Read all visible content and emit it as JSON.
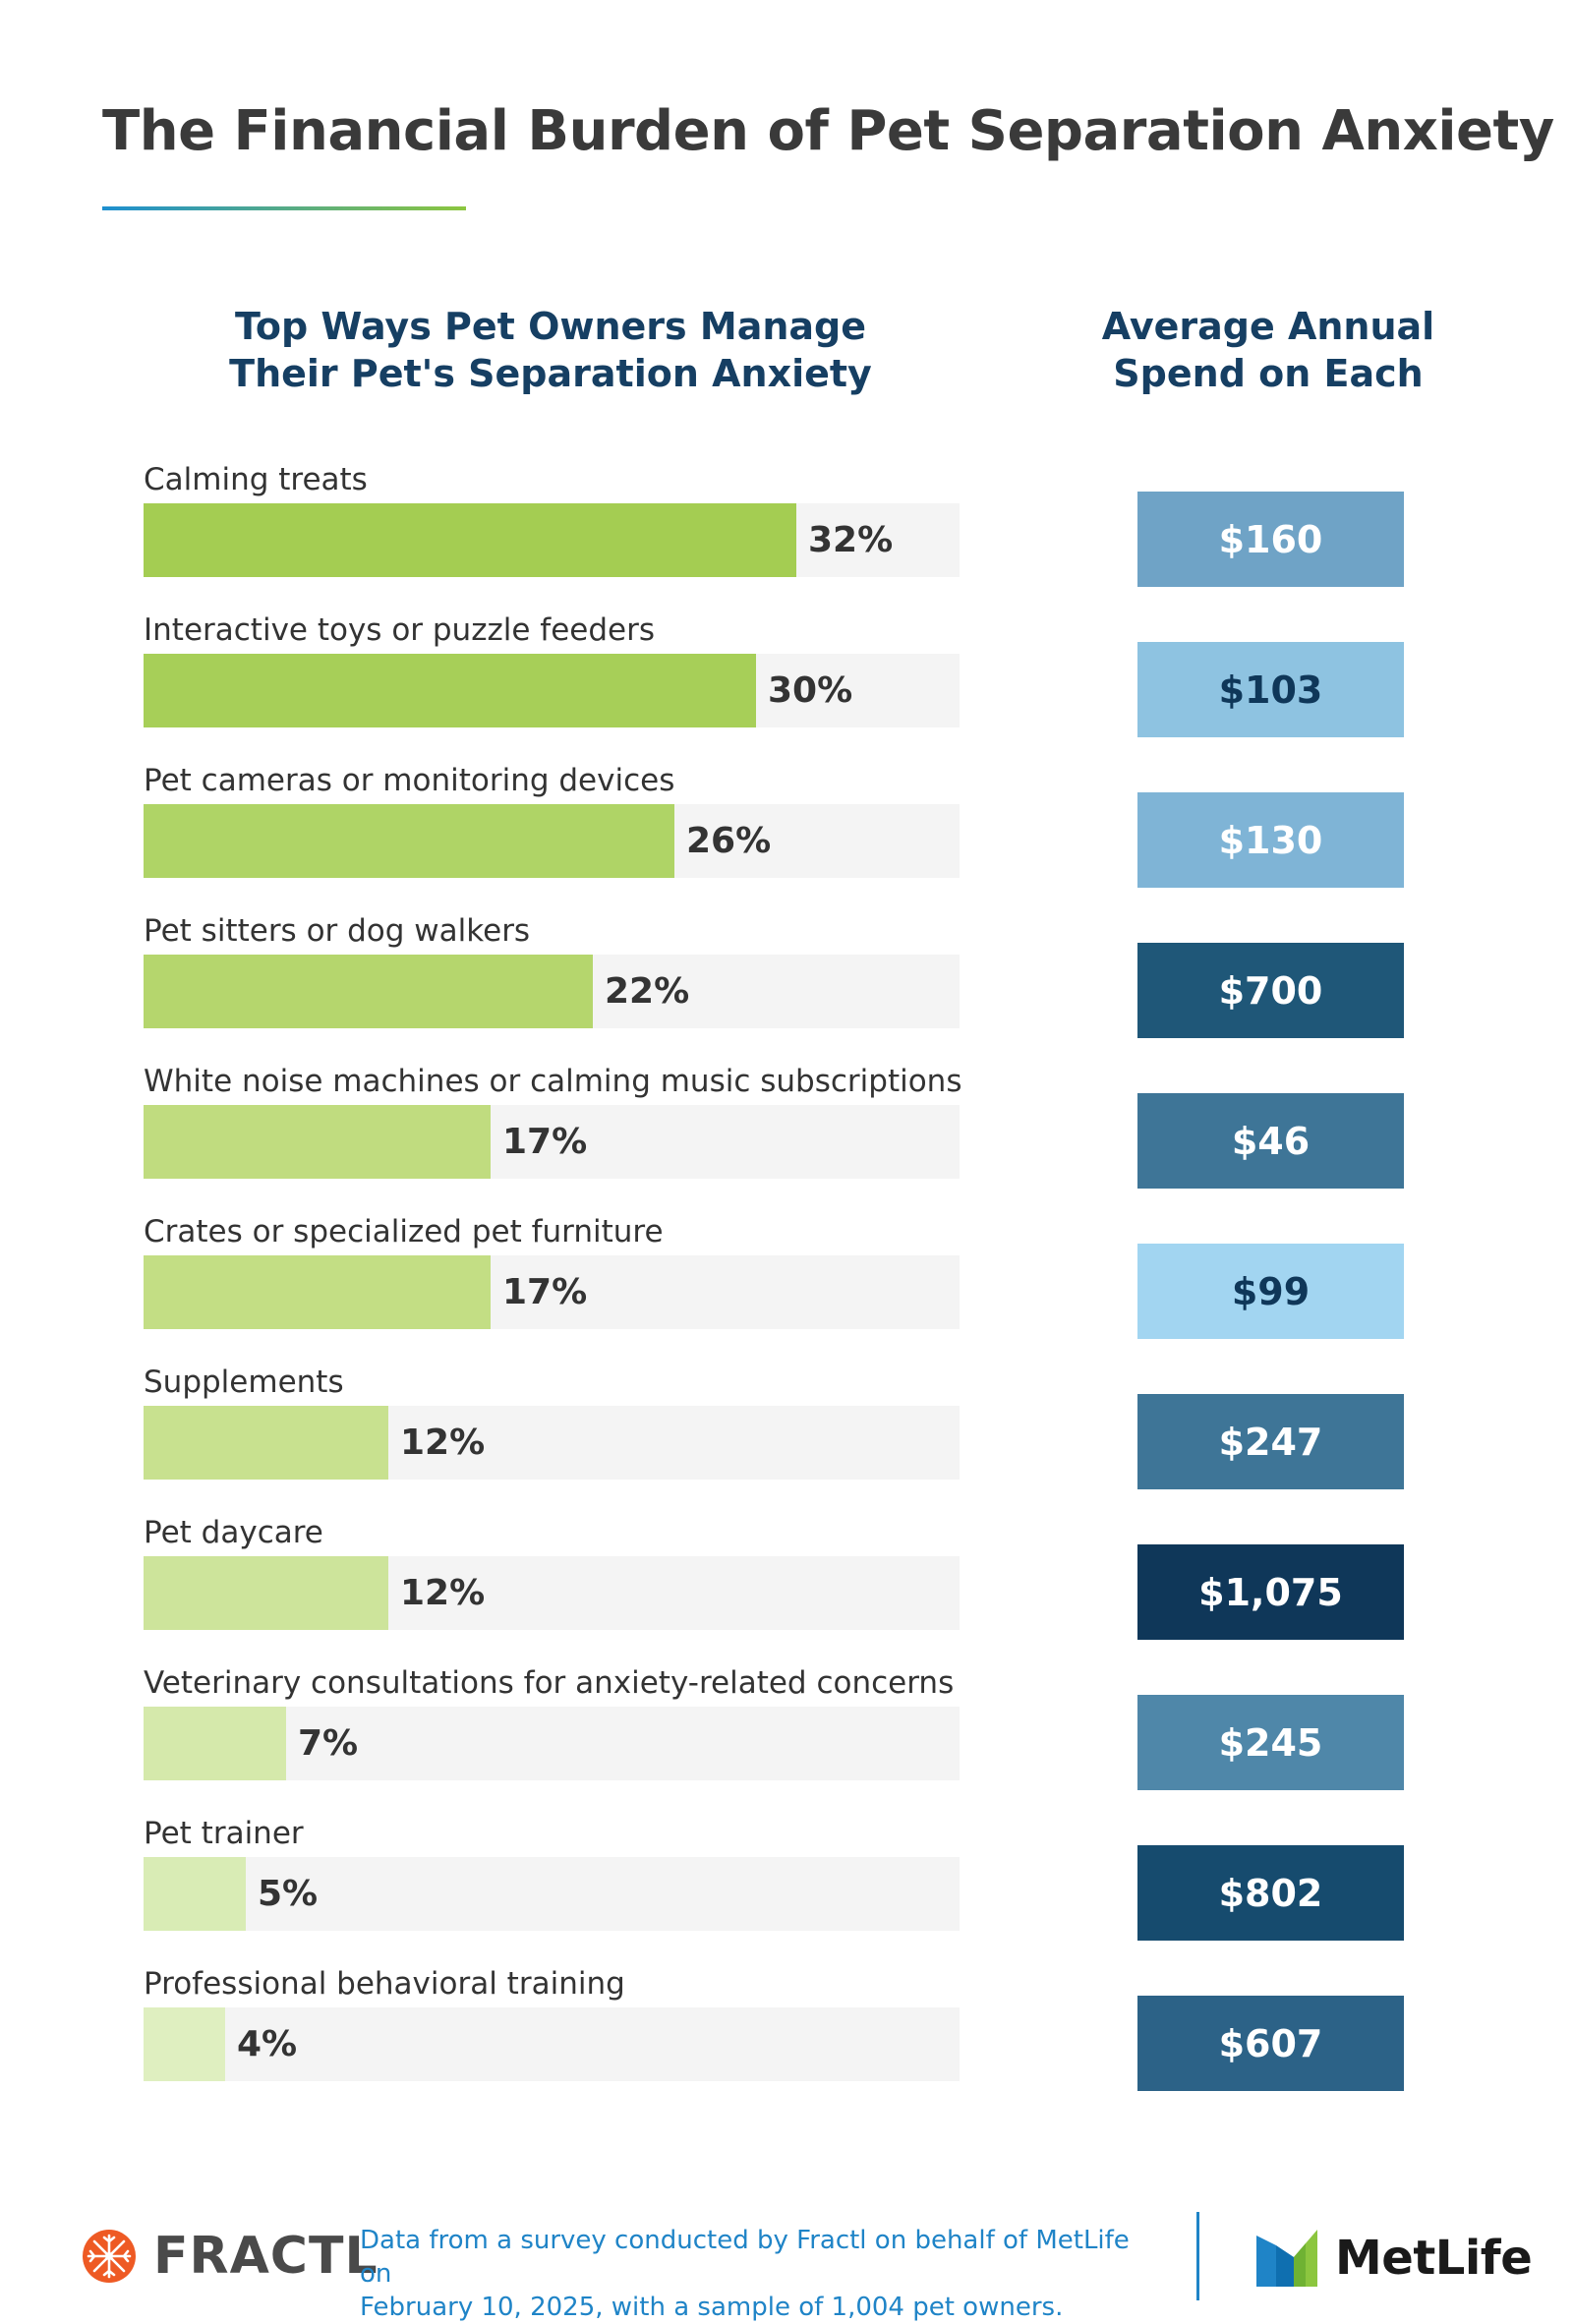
{
  "title": "The Financial Burden of Pet Separation Anxiety",
  "columns": {
    "left_line1": "Top Ways Pet Owners Manage",
    "left_line2": "Their Pet's Separation Anxiety",
    "right_line1": "Average Annual",
    "right_line2": "Spend on Each"
  },
  "chart_data": {
    "type": "bar",
    "orientation": "horizontal",
    "title": "Top Ways Pet Owners Manage Their Pet's Separation Anxiety",
    "xlabel": "",
    "ylabel": "",
    "xlim": [
      0,
      40
    ],
    "secondary_column_title": "Average Annual Spend on Each",
    "categories": [
      "Calming treats",
      "Interactive toys or puzzle feeders",
      "Pet cameras or monitoring devices",
      "Pet sitters or dog walkers",
      "White noise machines or calming music subscriptions",
      "Crates or specialized pet furniture",
      "Supplements",
      "Pet daycare",
      "Veterinary consultations for anxiety-related concerns",
      "Pet trainer",
      "Professional behavioral training"
    ],
    "values": [
      32,
      30,
      26,
      22,
      17,
      17,
      12,
      12,
      7,
      5,
      4
    ],
    "value_labels": [
      "32%",
      "30%",
      "26%",
      "22%",
      "17%",
      "17%",
      "12%",
      "12%",
      "7%",
      "5%",
      "4%"
    ],
    "bar_colors": [
      "#a4cd52",
      "#a7cf58",
      "#afd466",
      "#b5d66d",
      "#c0dc7f",
      "#c3de84",
      "#c8e18f",
      "#cde49b",
      "#d5e9ab",
      "#d9ecb5",
      "#dfefc0"
    ],
    "spend": [
      160,
      103,
      130,
      700,
      46,
      99,
      247,
      1075,
      245,
      802,
      607
    ],
    "spend_labels": [
      "$160",
      "$103",
      "$130",
      "$700",
      "$46",
      "$99",
      "$247",
      "$1,075",
      "$245",
      "$802",
      "$607"
    ],
    "spend_colors": [
      "#6fa3c6",
      "#8ec3e1",
      "#7fb4d6",
      "#1f5778",
      "#3e7597",
      "#a2d5f1",
      "#3e7597",
      "#0f3759",
      "#4f87a9",
      "#164b6e",
      "#2c6287"
    ],
    "spend_text_colors": [
      "#ffffff",
      "#0f3759",
      "#ffffff",
      "#ffffff",
      "#ffffff",
      "#0f3759",
      "#ffffff",
      "#ffffff",
      "#ffffff",
      "#ffffff",
      "#ffffff"
    ]
  },
  "footer": {
    "source_line1": "Data from a survey conducted by Fractl on behalf of MetLife on",
    "source_line2": "February 10, 2025, with a sample of 1,004 pet owners.",
    "fractl_logo_text": "FRACTL",
    "metlife_logo_text": "MetLife"
  },
  "colors": {
    "title": "#3a3a3a",
    "heading": "#163f63",
    "track": "#f4f4f4",
    "footer_text": "#1f84c7",
    "fractl_orange": "#ee5a24",
    "metlife_blue": "#1f84c7",
    "metlife_green": "#8cc63f"
  }
}
